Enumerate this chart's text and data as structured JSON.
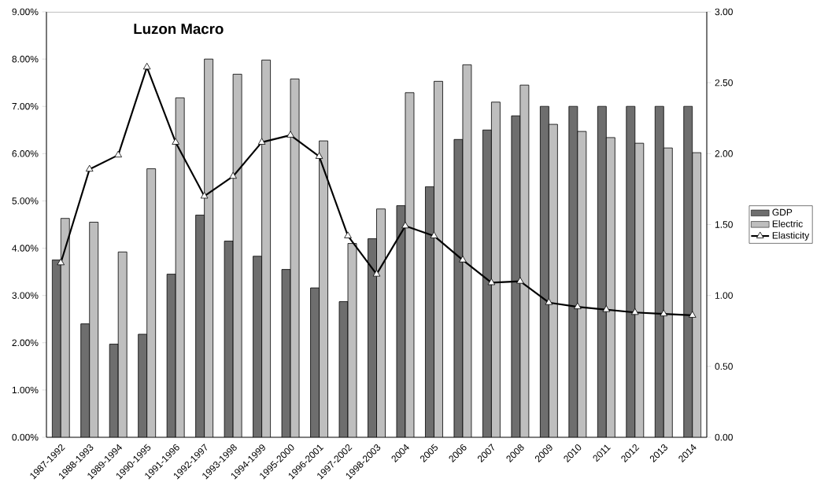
{
  "chart_data": {
    "type": "bar",
    "title": "Luzon Macro",
    "categories": [
      "1987-1992",
      "1988-1993",
      "1989-1994",
      "1990-1995",
      "1991-1996",
      "1992-1997",
      "1993-1998",
      "1994-1999",
      "1995-2000",
      "1996-2001",
      "1997-2002",
      "1998-2003",
      "2004",
      "2005",
      "2006",
      "2007",
      "2008",
      "2009",
      "2010",
      "2011",
      "2012",
      "2013",
      "2014"
    ],
    "series": [
      {
        "name": "GDP",
        "color": "#6e6e6e",
        "values": [
          3.75,
          2.4,
          1.97,
          2.18,
          3.45,
          4.7,
          4.15,
          3.83,
          3.55,
          3.16,
          2.87,
          4.2,
          4.9,
          5.3,
          6.3,
          6.5,
          6.8,
          7.0,
          7.0,
          7.0,
          7.0,
          7.0,
          7.0
        ]
      },
      {
        "name": "Electric",
        "color": "#bebebe",
        "values": [
          4.63,
          4.55,
          3.92,
          5.68,
          7.18,
          8.0,
          7.68,
          7.98,
          7.58,
          6.27,
          4.1,
          4.83,
          7.29,
          7.53,
          7.88,
          7.09,
          7.45,
          6.62,
          6.47,
          6.34,
          6.22,
          6.12,
          6.02
        ]
      },
      {
        "name": "Elasticity",
        "type": "line",
        "axis": "y2",
        "color": "#000000",
        "values": [
          1.23,
          1.89,
          1.99,
          2.61,
          2.08,
          1.7,
          1.84,
          2.08,
          2.13,
          1.98,
          1.42,
          1.15,
          1.49,
          1.42,
          1.25,
          1.09,
          1.1,
          0.95,
          0.92,
          0.9,
          0.88,
          0.87,
          0.86
        ]
      }
    ],
    "ylim": [
      0,
      9
    ],
    "yticks": [
      {
        "value": 0,
        "label": "0.00%"
      },
      {
        "value": 1,
        "label": "1.00%"
      },
      {
        "value": 2,
        "label": "2.00%"
      },
      {
        "value": 3,
        "label": "3.00%"
      },
      {
        "value": 4,
        "label": "4.00%"
      },
      {
        "value": 5,
        "label": "5.00%"
      },
      {
        "value": 6,
        "label": "6.00%"
      },
      {
        "value": 7,
        "label": "7.00%"
      },
      {
        "value": 8,
        "label": "8.00%"
      },
      {
        "value": 9,
        "label": "9.00%"
      }
    ],
    "y2lim": [
      0,
      3
    ],
    "y2ticks": [
      {
        "value": 0,
        "label": "0.00"
      },
      {
        "value": 0.5,
        "label": "0.50"
      },
      {
        "value": 1,
        "label": "1.00"
      },
      {
        "value": 1.5,
        "label": "1.50"
      },
      {
        "value": 2,
        "label": "2.00"
      },
      {
        "value": 2.5,
        "label": "2.50"
      },
      {
        "value": 3,
        "label": "3.00"
      }
    ],
    "legend": "right",
    "marker": "triangle"
  }
}
